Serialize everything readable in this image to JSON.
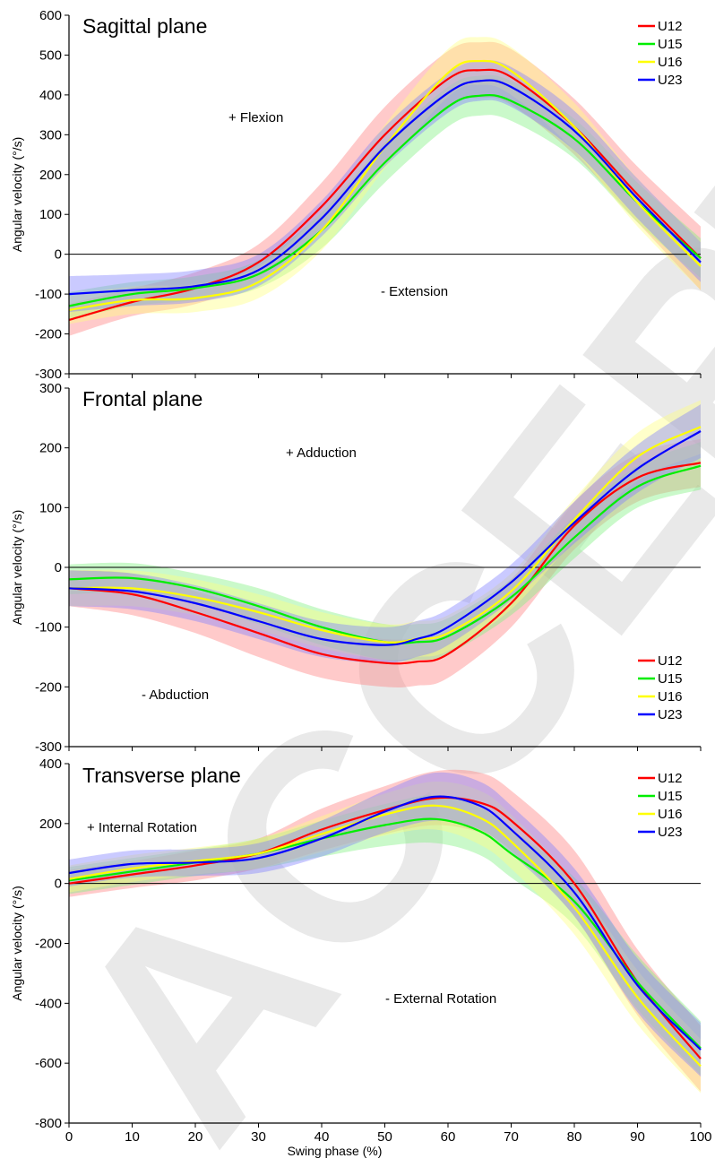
{
  "watermark": "ACCEPTED",
  "chart_data": [
    {
      "type": "line",
      "title": "Sagittal plane",
      "xlabel": "",
      "ylabel": "Angular velocity (°/s)",
      "xlim": [
        0,
        100
      ],
      "ylim": [
        -300,
        600
      ],
      "yticks": [
        -300,
        -200,
        -100,
        0,
        100,
        200,
        300,
        400,
        500,
        600
      ],
      "xticks": [
        0,
        10,
        20,
        30,
        40,
        50,
        60,
        70,
        80,
        90,
        100
      ],
      "annotations": [
        "+ Flexion",
        "- Extension"
      ],
      "legend_position": "top-right",
      "x": [
        0,
        10,
        20,
        30,
        40,
        50,
        60,
        65,
        70,
        80,
        90,
        100
      ],
      "series": [
        {
          "name": "U12",
          "color": "#ff0000",
          "band_color": "#ff8080",
          "values": [
            -165,
            -120,
            -85,
            -20,
            120,
            300,
            440,
            462,
            445,
            320,
            150,
            -10
          ],
          "sd": [
            40,
            35,
            40,
            45,
            60,
            70,
            70,
            70,
            70,
            70,
            70,
            80
          ]
        },
        {
          "name": "U15",
          "color": "#00ee00",
          "band_color": "#80f080",
          "values": [
            -130,
            -100,
            -85,
            -50,
            60,
            230,
            370,
            398,
            385,
            290,
            130,
            -10
          ],
          "sd": [
            35,
            30,
            30,
            35,
            45,
            50,
            50,
            50,
            50,
            50,
            50,
            50
          ]
        },
        {
          "name": "U16",
          "color": "#ffff00",
          "band_color": "#ffff80",
          "values": [
            -140,
            -115,
            -110,
            -70,
            60,
            270,
            455,
            485,
            460,
            320,
            130,
            -30
          ],
          "sd": [
            35,
            35,
            35,
            40,
            50,
            55,
            60,
            60,
            60,
            60,
            60,
            60
          ]
        },
        {
          "name": "U23",
          "color": "#0000ff",
          "band_color": "#8080ff",
          "values": [
            -100,
            -90,
            -80,
            -40,
            90,
            270,
            405,
            435,
            420,
            310,
            140,
            -20
          ],
          "sd": [
            45,
            40,
            40,
            40,
            45,
            50,
            50,
            50,
            50,
            50,
            50,
            50
          ]
        }
      ]
    },
    {
      "type": "line",
      "title": "Frontal plane",
      "xlabel": "",
      "ylabel": "Angular velocity (°/s)",
      "xlim": [
        0,
        100
      ],
      "ylim": [
        -300,
        300
      ],
      "yticks": [
        -300,
        -200,
        -100,
        0,
        100,
        200,
        300
      ],
      "xticks": [
        0,
        10,
        20,
        30,
        40,
        50,
        60,
        70,
        80,
        90,
        100
      ],
      "annotations": [
        "+ Adduction",
        "- Abduction"
      ],
      "legend_position": "bottom-right",
      "x": [
        0,
        10,
        20,
        30,
        40,
        50,
        55,
        60,
        70,
        80,
        90,
        100
      ],
      "series": [
        {
          "name": "U12",
          "color": "#ff0000",
          "band_color": "#ff8080",
          "values": [
            -35,
            -45,
            -75,
            -110,
            -145,
            -160,
            -158,
            -145,
            -60,
            70,
            150,
            175
          ],
          "sd": [
            30,
            35,
            35,
            40,
            40,
            40,
            40,
            40,
            40,
            40,
            40,
            40
          ]
        },
        {
          "name": "U15",
          "color": "#00ee00",
          "band_color": "#80f080",
          "values": [
            -20,
            -18,
            -35,
            -65,
            -100,
            -125,
            -125,
            -115,
            -50,
            50,
            135,
            170
          ],
          "sd": [
            25,
            25,
            25,
            30,
            30,
            30,
            30,
            30,
            30,
            35,
            35,
            40
          ]
        },
        {
          "name": "U16",
          "color": "#ffff00",
          "band_color": "#ffff80",
          "values": [
            -35,
            -35,
            -50,
            -75,
            -105,
            -125,
            -120,
            -110,
            -40,
            80,
            185,
            235
          ],
          "sd": [
            30,
            30,
            30,
            30,
            30,
            30,
            30,
            30,
            30,
            35,
            40,
            45
          ]
        },
        {
          "name": "U23",
          "color": "#0000ff",
          "band_color": "#8080ff",
          "values": [
            -35,
            -40,
            -60,
            -90,
            -120,
            -130,
            -120,
            -100,
            -25,
            75,
            165,
            228
          ],
          "sd": [
            30,
            30,
            30,
            30,
            30,
            30,
            30,
            30,
            30,
            35,
            40,
            45
          ]
        }
      ]
    },
    {
      "type": "line",
      "title": "Transverse plane",
      "xlabel": "Swing phase (%)",
      "ylabel": "Angular velocity (°/s)",
      "xlim": [
        0,
        100
      ],
      "ylim": [
        -800,
        400
      ],
      "yticks": [
        -800,
        -600,
        -400,
        -200,
        0,
        200,
        400
      ],
      "xticks": [
        0,
        10,
        20,
        30,
        40,
        50,
        60,
        70,
        80,
        90,
        100
      ],
      "annotations": [
        "+ Internal Rotation",
        "- External Rotation"
      ],
      "legend_position": "top-right",
      "x": [
        0,
        10,
        20,
        30,
        40,
        50,
        58,
        65,
        70,
        80,
        90,
        100
      ],
      "series": [
        {
          "name": "U12",
          "color": "#ff0000",
          "band_color": "#ff8080",
          "values": [
            0,
            30,
            60,
            100,
            180,
            245,
            285,
            270,
            210,
            0,
            -330,
            -585
          ],
          "sd": [
            45,
            45,
            50,
            50,
            70,
            80,
            90,
            100,
            100,
            110,
            110,
            110
          ]
        },
        {
          "name": "U15",
          "color": "#00ee00",
          "band_color": "#80f080",
          "values": [
            10,
            40,
            70,
            100,
            150,
            195,
            215,
            175,
            100,
            -60,
            -330,
            -550
          ],
          "sd": [
            45,
            45,
            45,
            50,
            60,
            70,
            80,
            80,
            80,
            80,
            90,
            90
          ]
        },
        {
          "name": "U16",
          "color": "#ffff00",
          "band_color": "#ffff80",
          "values": [
            15,
            50,
            75,
            100,
            165,
            230,
            260,
            220,
            140,
            -80,
            -380,
            -610
          ],
          "sd": [
            45,
            45,
            45,
            50,
            60,
            70,
            80,
            90,
            90,
            90,
            90,
            90
          ]
        },
        {
          "name": "U23",
          "color": "#0000ff",
          "band_color": "#8080ff",
          "values": [
            35,
            65,
            70,
            85,
            150,
            240,
            290,
            260,
            180,
            -30,
            -340,
            -555
          ],
          "sd": [
            45,
            45,
            45,
            50,
            60,
            70,
            80,
            80,
            80,
            80,
            90,
            90
          ]
        }
      ]
    }
  ]
}
